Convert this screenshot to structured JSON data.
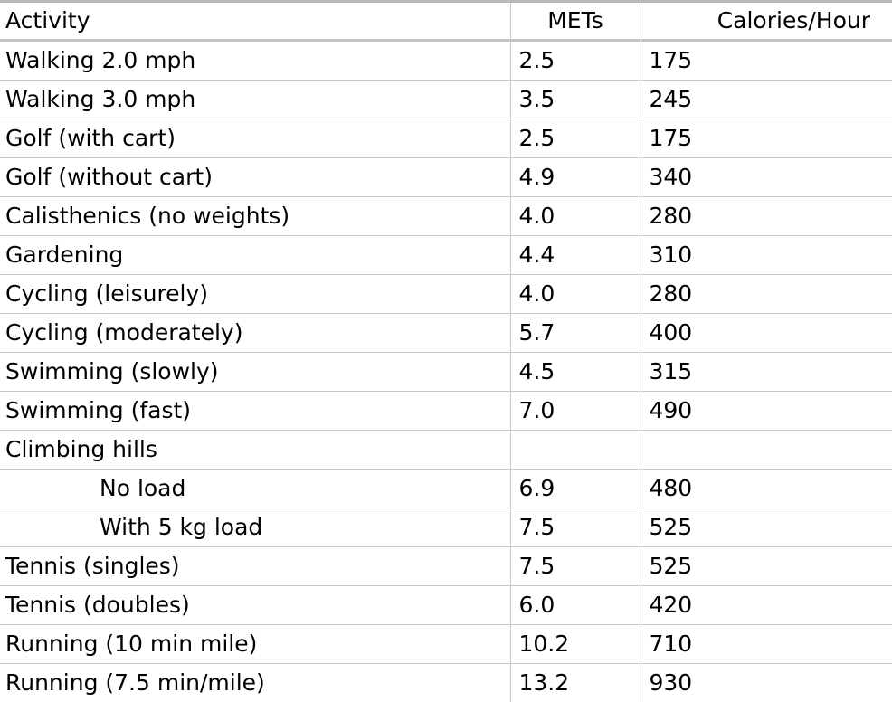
{
  "table": {
    "headers": {
      "activity": "Activity",
      "mets": "METs",
      "calories": "Calories/Hour"
    },
    "rows": [
      {
        "activity": "Walking 2.0 mph",
        "mets": "2.5",
        "calories": "175",
        "indent": false
      },
      {
        "activity": "Walking 3.0 mph",
        "mets": "3.5",
        "calories": "245",
        "indent": false
      },
      {
        "activity": "Golf (with cart)",
        "mets": "2.5",
        "calories": "175",
        "indent": false
      },
      {
        "activity": "Golf (without cart)",
        "mets": "4.9",
        "calories": "340",
        "indent": false
      },
      {
        "activity": "Calisthenics (no weights)",
        "mets": "4.0",
        "calories": "280",
        "indent": false
      },
      {
        "activity": "Gardening",
        "mets": "4.4",
        "calories": "310",
        "indent": false
      },
      {
        "activity": "Cycling (leisurely)",
        "mets": "4.0",
        "calories": "280",
        "indent": false
      },
      {
        "activity": "Cycling (moderately)",
        "mets": "5.7",
        "calories": "400",
        "indent": false
      },
      {
        "activity": "Swimming (slowly)",
        "mets": "4.5",
        "calories": "315",
        "indent": false
      },
      {
        "activity": "Swimming (fast)",
        "mets": "7.0",
        "calories": "490",
        "indent": false
      },
      {
        "activity": "Climbing hills",
        "mets": "",
        "calories": "",
        "indent": false
      },
      {
        "activity": "No load",
        "mets": "6.9",
        "calories": "480",
        "indent": true
      },
      {
        "activity": "With 5 kg load",
        "mets": "7.5",
        "calories": "525",
        "indent": true
      },
      {
        "activity": "Tennis (singles)",
        "mets": "7.5",
        "calories": "525",
        "indent": false
      },
      {
        "activity": "Tennis (doubles)",
        "mets": "6.0",
        "calories": "420",
        "indent": false
      },
      {
        "activity": "Running (10 min mile)",
        "mets": "10.2",
        "calories": "710",
        "indent": false
      },
      {
        "activity": "Running (7.5 min/mile)",
        "mets": "13.2",
        "calories": "930",
        "indent": false
      }
    ]
  }
}
